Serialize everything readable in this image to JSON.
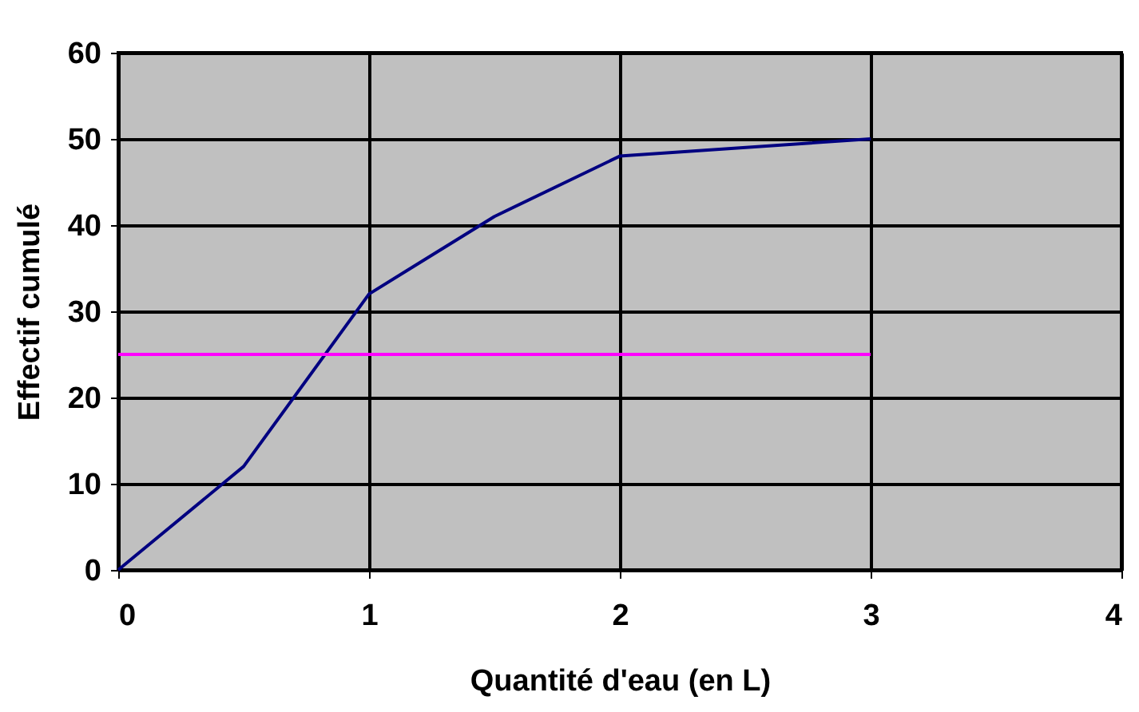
{
  "chart_data": {
    "type": "line",
    "xlabel": "Quantité d'eau (en L)",
    "ylabel": "Effectif cumulé",
    "series": [
      {
        "color": "#000080",
        "x": [
          0,
          0.5,
          1,
          1.5,
          2,
          3
        ],
        "values": [
          0,
          12,
          32,
          41,
          48,
          50
        ]
      },
      {
        "color": "#ff00ff",
        "x": [
          0,
          3
        ],
        "values": [
          25,
          25
        ]
      }
    ],
    "xlim": [
      0,
      4
    ],
    "xticks": [
      0,
      1,
      2,
      3,
      4
    ],
    "ylim": [
      0,
      60
    ],
    "yticks": [
      0,
      10,
      20,
      30,
      40,
      50,
      60
    ],
    "grid": true,
    "marker": "none",
    "line_style": "solid"
  }
}
